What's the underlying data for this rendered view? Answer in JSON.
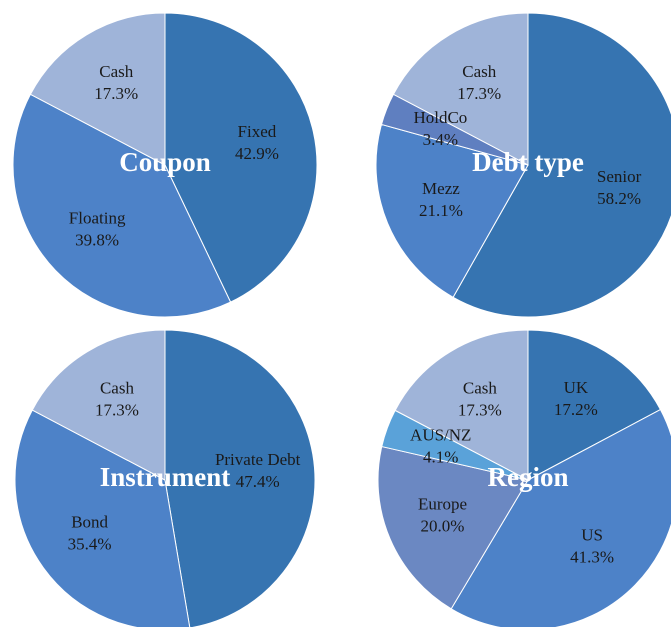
{
  "chart_data": [
    {
      "type": "pie",
      "title": "Coupon",
      "categories": [
        "Fixed",
        "Floating",
        "Cash"
      ],
      "values": [
        42.9,
        39.8,
        17.3
      ],
      "value_labels": [
        "42.9%",
        "39.8%",
        "17.3%"
      ],
      "colors": [
        "#3674b1",
        "#4d82c8",
        "#9fb4d9"
      ]
    },
    {
      "type": "pie",
      "title": "Debt type",
      "categories": [
        "Senior",
        "Mezz",
        "HoldCo",
        "Cash"
      ],
      "values": [
        58.2,
        21.1,
        3.4,
        17.3
      ],
      "value_labels": [
        "58.2%",
        "21.1%",
        "3.4%",
        "17.3%"
      ],
      "colors": [
        "#3674b1",
        "#4d82c8",
        "#5f7fc0",
        "#9fb4d9"
      ]
    },
    {
      "type": "pie",
      "title": "Instrument",
      "categories": [
        "Private Debt",
        "Bond",
        "Cash"
      ],
      "values": [
        47.4,
        35.4,
        17.3
      ],
      "value_labels": [
        "47.4%",
        "35.4%",
        "17.3%"
      ],
      "colors": [
        "#3674b1",
        "#4d82c8",
        "#9fb4d9"
      ]
    },
    {
      "type": "pie",
      "title": "Region",
      "categories": [
        "UK",
        "US",
        "Europe",
        "AUS/NZ",
        "Cash"
      ],
      "values": [
        17.2,
        41.3,
        20.0,
        4.1,
        17.3
      ],
      "value_labels": [
        "17.2%",
        "41.3%",
        "20.0%",
        "4.1%",
        "17.3%"
      ],
      "colors": [
        "#3674b1",
        "#4d82c8",
        "#6b88c2",
        "#5aa2d9",
        "#9fb4d9"
      ]
    }
  ]
}
